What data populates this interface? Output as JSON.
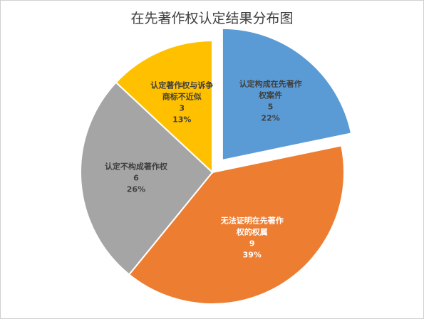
{
  "chart_data": {
    "type": "pie",
    "title": "在先著作权认定结果分布图",
    "slices": [
      {
        "label_lines": [
          "认定构成在先著作",
          "权案件"
        ],
        "value": 5,
        "percent": "22%",
        "color": "#5b9bd5",
        "text_color": "#404040",
        "exploded": true
      },
      {
        "label_lines": [
          "无法证明在先著作",
          "权的权属"
        ],
        "value": 9,
        "percent": "39%",
        "color": "#ed7d31",
        "text_color": "#ffffff",
        "exploded": false
      },
      {
        "label_lines": [
          "认定不构成著作权"
        ],
        "value": 6,
        "percent": "26%",
        "color": "#a5a5a5",
        "text_color": "#404040",
        "exploded": false
      },
      {
        "label_lines": [
          "认定著作权与诉争",
          "商标不近似"
        ],
        "value": 3,
        "percent": "13%",
        "color": "#ffc000",
        "text_color": "#404040",
        "exploded": false
      }
    ]
  }
}
